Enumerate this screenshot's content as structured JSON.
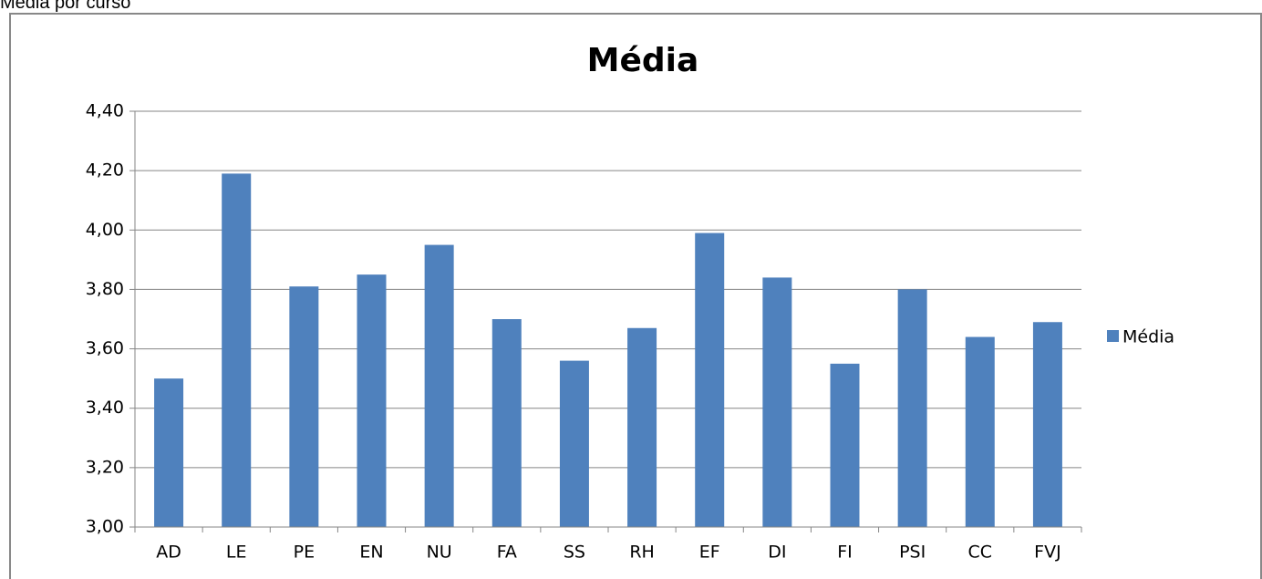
{
  "header": {
    "title": "Média por curso"
  },
  "chart_data": {
    "type": "bar",
    "title": "Média",
    "categories": [
      "AD",
      "LE",
      "PE",
      "EN",
      "NU",
      "FA",
      "SS",
      "RH",
      "EF",
      "DI",
      "FI",
      "PSI",
      "CC",
      "FVJ"
    ],
    "series": [
      {
        "name": "Média",
        "color": "#4f81bd",
        "values": [
          3.5,
          4.19,
          3.81,
          3.85,
          3.95,
          3.7,
          3.56,
          3.67,
          3.99,
          3.84,
          3.55,
          3.8,
          3.64,
          3.69
        ]
      }
    ],
    "ylim": [
      3.0,
      4.4
    ],
    "yticks": [
      {
        "value": 3.0,
        "label": "3,00"
      },
      {
        "value": 3.2,
        "label": "3,20"
      },
      {
        "value": 3.4,
        "label": "3,40"
      },
      {
        "value": 3.6,
        "label": "3,60"
      },
      {
        "value": 3.8,
        "label": "3,80"
      },
      {
        "value": 4.0,
        "label": "4,00"
      },
      {
        "value": 4.2,
        "label": "4,20"
      },
      {
        "value": 4.4,
        "label": "4,40"
      }
    ],
    "grid": true,
    "legend": "right"
  }
}
